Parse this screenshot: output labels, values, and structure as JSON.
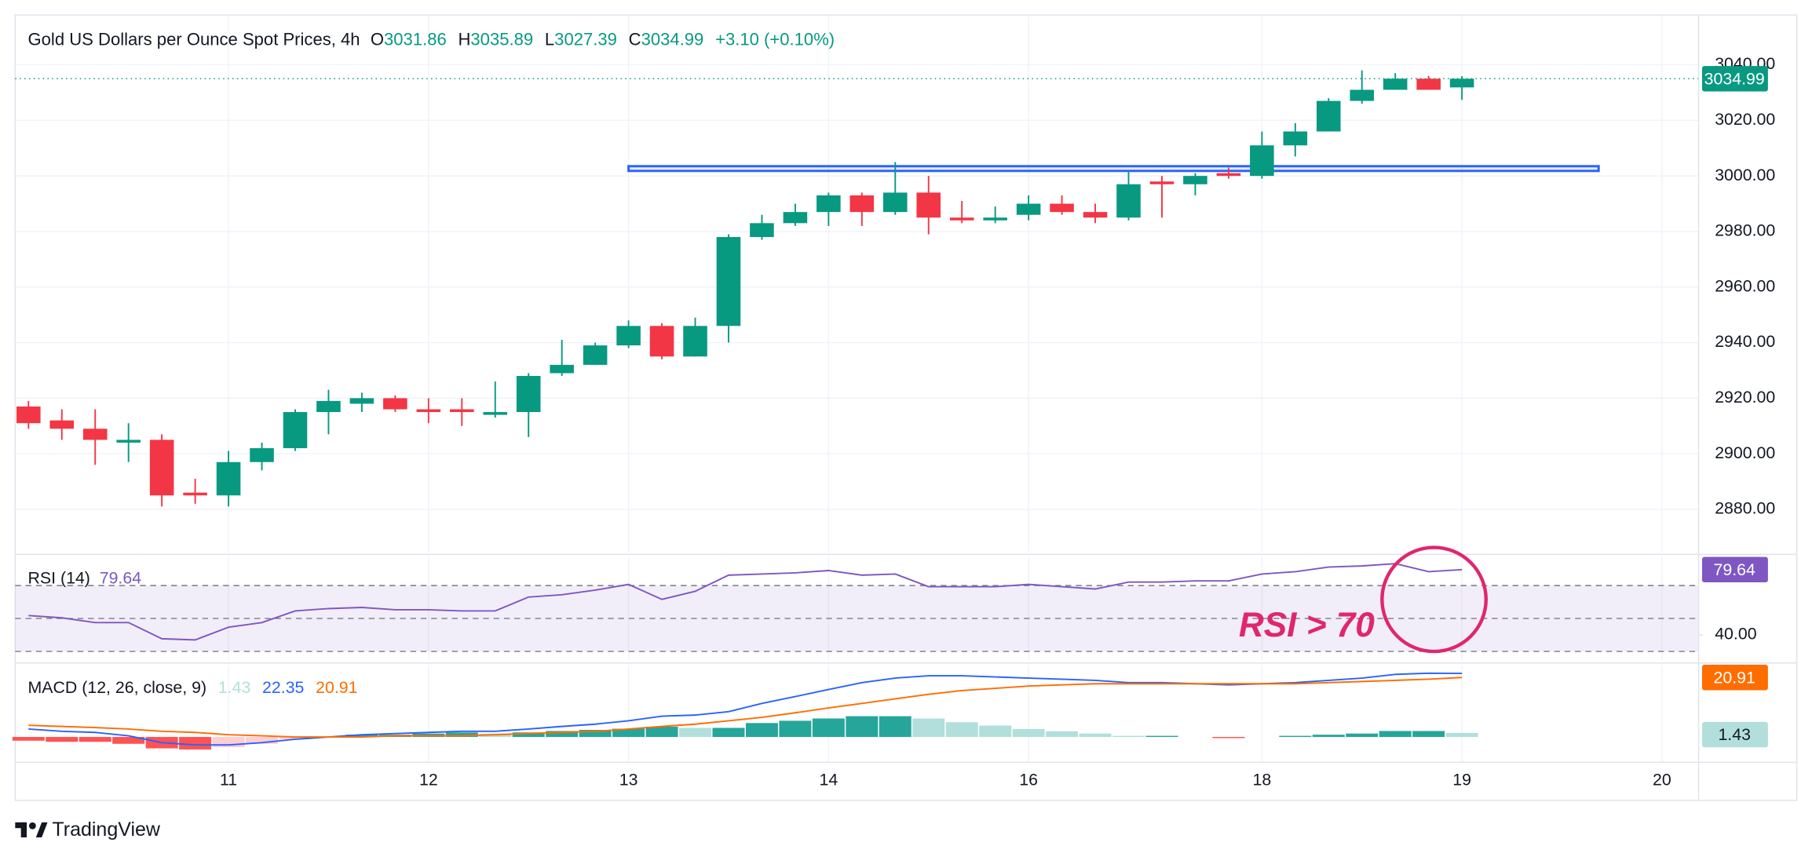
{
  "brand": "TradingView",
  "chart_data": [
    {
      "type": "candlestick",
      "title": "Gold US Dollars per Ounce Spot Prices, 4h",
      "ohlc_labels": [
        "O",
        "H",
        "L",
        "C"
      ],
      "change_label": "+3.10 (+0.10%)",
      "open": [
        2917,
        2912,
        2909,
        2904,
        2905,
        2886,
        2885,
        2897,
        2902,
        2915,
        2918,
        2920,
        2916,
        2916,
        2914,
        2915,
        2929,
        2932,
        2939,
        2946,
        2935,
        2946,
        2978,
        2983,
        2987,
        2993,
        2987,
        2994,
        2985,
        2984,
        2986,
        2990,
        2987,
        2985,
        2998,
        2997,
        3001,
        3000,
        3011,
        3016,
        3027,
        3031,
        3035,
        3031.86
      ],
      "high": [
        2919,
        2916,
        2916,
        2911,
        2907,
        2891,
        2901,
        2904,
        2916,
        2923,
        2922,
        2921,
        2920,
        2920,
        2926,
        2929,
        2941,
        2940,
        2948,
        2947,
        2949,
        2979,
        2986,
        2990,
        2994,
        2994,
        3005,
        3000,
        2991,
        2989,
        2993,
        2993,
        2990,
        3002,
        3000,
        3001,
        3003,
        3016,
        3019,
        3028,
        3038,
        3037,
        3036,
        3035.89
      ],
      "low": [
        2909,
        2905,
        2896,
        2897,
        2881,
        2882,
        2881,
        2894,
        2901,
        2907,
        2915,
        2915,
        2911,
        2910,
        2913,
        2906,
        2928,
        2932,
        2938,
        2934,
        2935,
        2940,
        2977,
        2982,
        2982,
        2982,
        2986,
        2979,
        2983,
        2983,
        2984,
        2986,
        2983,
        2984,
        2985,
        2993,
        2999,
        2999,
        3007,
        3016,
        3026,
        3031,
        3031,
        3027.39
      ],
      "close": [
        2911,
        2909,
        2905,
        2905,
        2885,
        2885,
        2897,
        2902,
        2915,
        2919,
        2920,
        2916,
        2915,
        2915,
        2915,
        2928,
        2932,
        2939,
        2946,
        2935,
        2946,
        2978,
        2983,
        2987,
        2993,
        2987,
        2994,
        2985,
        2984,
        2985,
        2990,
        2987,
        2985,
        2997,
        2997,
        3000,
        3000,
        3011,
        3016,
        3027,
        3031,
        3035,
        3031,
        3034.99
      ],
      "up_color": "#089981",
      "down_color": "#f23645",
      "xlim": [
        -0.4,
        50.1
      ],
      "xticks": [
        {
          "value": 6,
          "label": "11"
        },
        {
          "value": 12,
          "label": "12"
        },
        {
          "value": 18,
          "label": "13"
        },
        {
          "value": 24,
          "label": "14"
        },
        {
          "value": 30,
          "label": "16"
        },
        {
          "value": 37,
          "label": "18"
        },
        {
          "value": 43,
          "label": "19"
        },
        {
          "value": 49,
          "label": "20"
        }
      ],
      "ylim": [
        2864.6,
        3057.5
      ],
      "yticks": [
        {
          "value": 2880,
          "label": "2880.00"
        },
        {
          "value": 2900,
          "label": "2900.00"
        },
        {
          "value": 2920,
          "label": "2920.00"
        },
        {
          "value": 2940,
          "label": "2940.00"
        },
        {
          "value": 2960,
          "label": "2960.00"
        },
        {
          "value": 2980,
          "label": "2980.00"
        },
        {
          "value": 3000,
          "label": "3000.00"
        },
        {
          "value": 3020,
          "label": "3020.00"
        },
        {
          "value": 3040,
          "label": "3040.00"
        }
      ],
      "grid": true,
      "zone": {
        "from": 18,
        "to": 47.1,
        "low": 3001.8,
        "high": 3003.5,
        "color": "#2962ff"
      }
    },
    {
      "type": "line",
      "title": "RSI (14)",
      "values": [
        51.8,
        50.4,
        47.5,
        47.5,
        37.7,
        37,
        44.7,
        47.5,
        54.6,
        56,
        56.7,
        55.3,
        55.3,
        54.6,
        54.6,
        63,
        64.4,
        67.2,
        70.7,
        61.6,
        66.5,
        76.3,
        77,
        77.7,
        79.1,
        76.3,
        77,
        69.3,
        69.3,
        69.3,
        70.7,
        69.3,
        67.9,
        72.1,
        72.1,
        72.8,
        72.8,
        77,
        78.4,
        81.2,
        81.9,
        83.3,
        78.4,
        79.64
      ],
      "color": "#7e57c2",
      "levels": [
        70,
        50,
        30
      ],
      "ylim": [
        24.4,
        87.5
      ],
      "yticks": [
        {
          "value": 40,
          "label": "40.00"
        }
      ],
      "annotation": "RSI > 70",
      "annotation_color": "#e0266f"
    },
    {
      "type": "macd",
      "title": "MACD (12, 26, close, 9)",
      "macd": [
        2.8,
        2,
        1.6,
        0.4,
        -2,
        -2.8,
        -2.8,
        -2,
        -0.8,
        0,
        0.8,
        1.2,
        1.6,
        2,
        2,
        2.8,
        3.7,
        4.5,
        5.7,
        7.3,
        7.7,
        8.9,
        11.8,
        14.2,
        16.7,
        19.1,
        20.7,
        21.5,
        21.5,
        21.1,
        20.7,
        20.3,
        19.9,
        19.1,
        19.1,
        18.7,
        18.3,
        18.7,
        19.1,
        19.9,
        20.7,
        22,
        22.4,
        22.35
      ],
      "signal": [
        4.1,
        3.7,
        3.3,
        2.8,
        2,
        1.6,
        0.8,
        0.4,
        0,
        0,
        0,
        0.4,
        0.4,
        0.4,
        0.8,
        1.2,
        1.6,
        2,
        2.8,
        3.7,
        4.5,
        5.7,
        6.9,
        8.5,
        10.2,
        11.8,
        13.4,
        15,
        16.3,
        17.1,
        17.9,
        18.3,
        18.7,
        18.7,
        18.7,
        18.7,
        18.7,
        18.7,
        18.7,
        19.1,
        19.5,
        19.9,
        20.3,
        20.91
      ],
      "histogram": [
        -1.3,
        -1.7,
        -1.7,
        -2.4,
        -4,
        -4.4,
        -3.6,
        -2.4,
        -0.8,
        0,
        0.8,
        0.8,
        1.2,
        1.6,
        1.2,
        1.6,
        2.1,
        2.5,
        2.9,
        3.6,
        3.2,
        3.2,
        4.9,
        5.7,
        6.5,
        7.3,
        7.3,
        6.5,
        5.2,
        4,
        2.8,
        2,
        1.2,
        0.4,
        0.4,
        0,
        -0.4,
        0,
        0.4,
        0.8,
        1.2,
        2.1,
        2.1,
        1.43
      ],
      "macd_color": "#2962ff",
      "signal_color": "#ff6d00",
      "hist_colors": {
        "up_grow": "#26a69a",
        "up_fall": "#b2dfdb",
        "down_fall": "#ff5252",
        "down_rise": "#ffcdd2"
      },
      "ylim": [
        -8.9,
        25.2
      ]
    }
  ]
}
